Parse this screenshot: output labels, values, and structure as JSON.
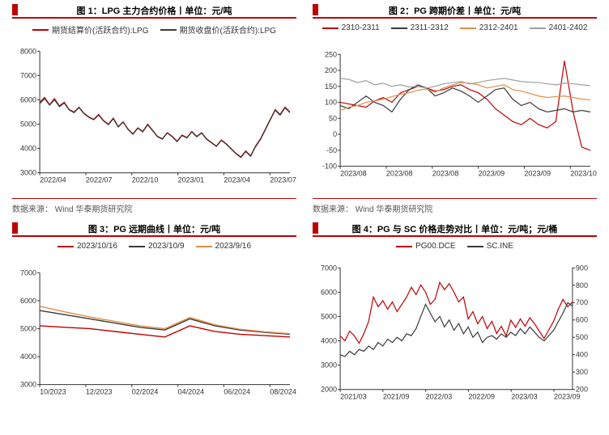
{
  "colors": {
    "accent": "#c00000",
    "black": "#3a3a3a",
    "orange": "#e08e4a",
    "gray": "#9f9f9f",
    "axis": "#333333",
    "bg": "#ffffff"
  },
  "source_left": "数据来源：  Wind 华泰期货研究院",
  "source_right": "数据来源：  Wind 华泰期货研究院",
  "chart1": {
    "title": "图 1：LPG 主力合约价格丨单位：元/吨",
    "type": "line",
    "legend": [
      {
        "label": "期货结算价(活跃合约):LPG",
        "color": "#c00000"
      },
      {
        "label": "期货收盘价(活跃合约):LPG",
        "color": "#3a3a3a"
      }
    ],
    "yaxis": {
      "min": 3000,
      "max": 8000,
      "step": 1000
    },
    "xticks": [
      "2022/04",
      "2022/07",
      "2022/10",
      "2023/01",
      "2023/04",
      "2023/07"
    ],
    "series": [
      {
        "color": "#c00000",
        "width": 1.2,
        "y": [
          5900,
          6100,
          5800,
          6050,
          5750,
          5900,
          5600,
          5500,
          5700,
          5450,
          5300,
          5200,
          5400,
          5150,
          5000,
          5250,
          4900,
          5100,
          4800,
          4600,
          4850,
          4700,
          5000,
          4750,
          4500,
          4400,
          4650,
          4500,
          4300,
          4550,
          4450,
          4700,
          4500,
          4650,
          4400,
          4250,
          4100,
          4350,
          4200,
          4000,
          3800,
          3650,
          3900,
          3700,
          4100,
          4400,
          4800,
          5200,
          5600,
          5400,
          5700,
          5500
        ]
      },
      {
        "color": "#3a3a3a",
        "width": 1.2,
        "y": [
          5850,
          6050,
          5780,
          6000,
          5720,
          5870,
          5580,
          5470,
          5680,
          5430,
          5280,
          5180,
          5370,
          5130,
          4980,
          5220,
          4880,
          5080,
          4780,
          4580,
          4830,
          4680,
          4970,
          4730,
          4480,
          4380,
          4630,
          4480,
          4280,
          4530,
          4430,
          4680,
          4480,
          4630,
          4380,
          4230,
          4080,
          4330,
          4180,
          3980,
          3780,
          3630,
          3870,
          3680,
          4070,
          4370,
          4770,
          5170,
          5570,
          5370,
          5670,
          5470
        ]
      }
    ]
  },
  "chart2": {
    "title": "图 2：PG 跨期价差丨单位：元/吨",
    "type": "line",
    "legend": [
      {
        "label": "2310-2311",
        "color": "#c00000"
      },
      {
        "label": "2311-2312",
        "color": "#3a3a3a"
      },
      {
        "label": "2312-2401",
        "color": "#e08e4a"
      },
      {
        "label": "2401-2402",
        "color": "#9f9f9f"
      }
    ],
    "yaxis": {
      "min": -100,
      "max": 250,
      "step": 50
    },
    "xticks": [
      "2023/08",
      "2023/08",
      "2023/08",
      "2023/09",
      "2023/09",
      "2023/10"
    ],
    "series": [
      {
        "color": "#c00000",
        "width": 1.2,
        "y": [
          100,
          95,
          90,
          85,
          105,
          115,
          100,
          130,
          140,
          150,
          145,
          135,
          140,
          150,
          155,
          140,
          130,
          110,
          80,
          60,
          40,
          30,
          50,
          30,
          20,
          40,
          230,
          70,
          -40,
          -50
        ]
      },
      {
        "color": "#3a3a3a",
        "width": 1.2,
        "y": [
          90,
          80,
          100,
          120,
          100,
          90,
          70,
          110,
          140,
          155,
          145,
          120,
          130,
          145,
          135,
          120,
          100,
          120,
          140,
          145,
          110,
          90,
          100,
          80,
          70,
          75,
          80,
          70,
          75,
          70
        ]
      },
      {
        "color": "#e08e4a",
        "width": 1.2,
        "y": [
          75,
          85,
          90,
          100,
          105,
          110,
          118,
          125,
          130,
          138,
          142,
          132,
          145,
          155,
          162,
          160,
          155,
          145,
          150,
          155,
          140,
          135,
          128,
          120,
          115,
          118,
          120,
          115,
          110,
          108
        ]
      },
      {
        "color": "#9f9f9f",
        "width": 1.2,
        "y": [
          175,
          172,
          162,
          168,
          155,
          160,
          150,
          155,
          148,
          150,
          145,
          150,
          158,
          162,
          165,
          158,
          162,
          168,
          172,
          175,
          170,
          165,
          163,
          162,
          158,
          155,
          160,
          158,
          155,
          152
        ]
      }
    ]
  },
  "chart3": {
    "title": "图 3：PG 远期曲线丨单位：元/吨",
    "type": "line",
    "legend": [
      {
        "label": "2023/10/16",
        "color": "#c00000"
      },
      {
        "label": "2023/10/9",
        "color": "#3a3a3a"
      },
      {
        "label": "2023/9/16",
        "color": "#e08e4a"
      }
    ],
    "yaxis": {
      "min": 3000,
      "max": 7000,
      "step": 1000
    },
    "xticks": [
      "10/2023",
      "12/2023",
      "02/2024",
      "04/2024",
      "06/2024",
      "08/2024"
    ],
    "series": [
      {
        "color": "#c00000",
        "width": 1.4,
        "y": [
          5100,
          5050,
          5000,
          4900,
          4800,
          4700,
          5100,
          4900,
          4800,
          4750,
          4700
        ]
      },
      {
        "color": "#3a3a3a",
        "width": 1.4,
        "y": [
          5650,
          5500,
          5350,
          5200,
          5050,
          4950,
          5350,
          5100,
          4950,
          4870,
          4800
        ]
      },
      {
        "color": "#e08e4a",
        "width": 1.4,
        "y": [
          5800,
          5600,
          5420,
          5260,
          5100,
          5000,
          5400,
          5140,
          4980,
          4890,
          4820
        ]
      }
    ]
  },
  "chart4": {
    "title": "图 4：PG 与 SC 价格走势对比丨单位：元/吨；元/桶",
    "type": "line_dual",
    "legend": [
      {
        "label": "PG00.DCE",
        "color": "#c00000"
      },
      {
        "label": "SC.INE",
        "color": "#3a3a3a"
      }
    ],
    "yaxis": {
      "min": 2000,
      "max": 7000,
      "step": 1000
    },
    "yaxis2": {
      "min": 200,
      "max": 900,
      "step": 100
    },
    "xticks": [
      "2021/03",
      "2021/09",
      "2022/03",
      "2022/09",
      "2023/03",
      "2023/09"
    ],
    "series": [
      {
        "color": "#c00000",
        "width": 1.2,
        "axis": "left",
        "y": [
          4200,
          4000,
          4400,
          4200,
          3900,
          4300,
          4800,
          5800,
          5400,
          5650,
          5300,
          5600,
          5200,
          5500,
          5800,
          6200,
          5900,
          6300,
          6000,
          5500,
          5700,
          6400,
          6100,
          6350,
          6000,
          5600,
          5800,
          4900,
          5200,
          4700,
          5000,
          4500,
          4800,
          4300,
          4600,
          4200,
          4850,
          4550,
          4900,
          4600,
          4950,
          4700,
          4400,
          4100,
          4450,
          4800,
          5300,
          5700,
          5400,
          5600
        ]
      },
      {
        "color": "#3a3a3a",
        "width": 1.2,
        "axis": "right",
        "y": [
          400,
          390,
          420,
          400,
          430,
          420,
          450,
          430,
          470,
          450,
          490,
          470,
          500,
          480,
          520,
          510,
          550,
          620,
          690,
          640,
          590,
          620,
          560,
          600,
          540,
          580,
          520,
          560,
          500,
          530,
          470,
          500,
          510,
          490,
          520,
          500,
          530,
          510,
          550,
          520,
          560,
          530,
          500,
          480,
          510,
          540,
          590,
          640,
          700,
          680
        ]
      }
    ]
  }
}
